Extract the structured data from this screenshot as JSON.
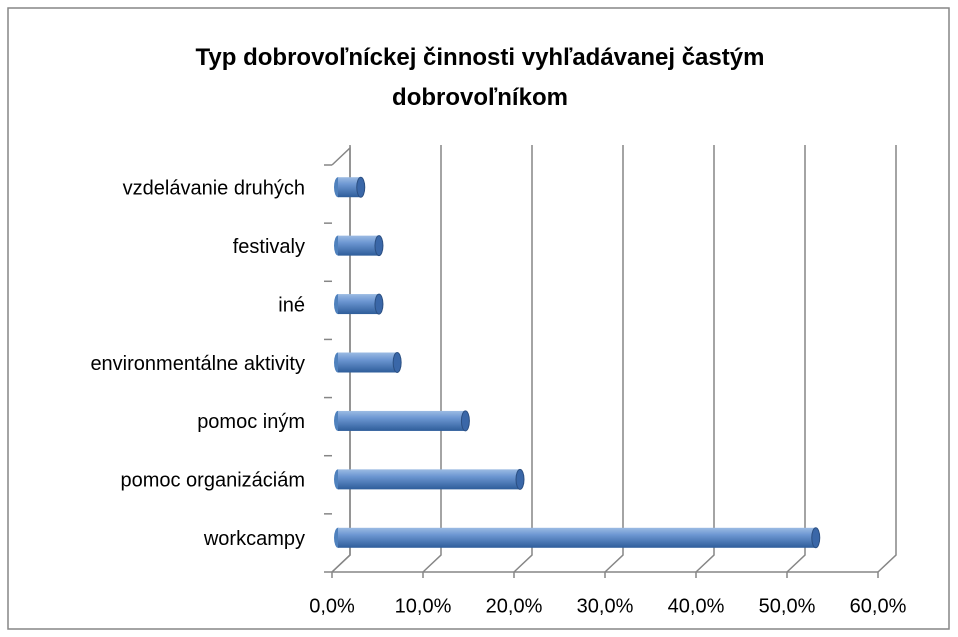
{
  "chart_data": {
    "type": "bar",
    "orientation": "horizontal",
    "title": "Typ dobrovoľníckej činnosti vyhľadávanej častým dobrovoľníkom",
    "categories": [
      "vzdelávanie druhých",
      "festivaly",
      "iné",
      "environmentálne aktivity",
      "pomoc iným",
      "pomoc organizáciám",
      "workcampy"
    ],
    "values": [
      2.5,
      4.5,
      4.5,
      6.5,
      14,
      20,
      52.5
    ],
    "color": "#4f81bd",
    "xlim": [
      0,
      60
    ],
    "xticks": [
      {
        "value": 0,
        "label": "0,0%"
      },
      {
        "value": 10,
        "label": "10,0%"
      },
      {
        "value": 20,
        "label": "20,0%"
      },
      {
        "value": 30,
        "label": "30,0%"
      },
      {
        "value": 40,
        "label": "40,0%"
      },
      {
        "value": 50,
        "label": "50,0%"
      },
      {
        "value": 60,
        "label": "60,0%"
      }
    ],
    "grid": true
  }
}
